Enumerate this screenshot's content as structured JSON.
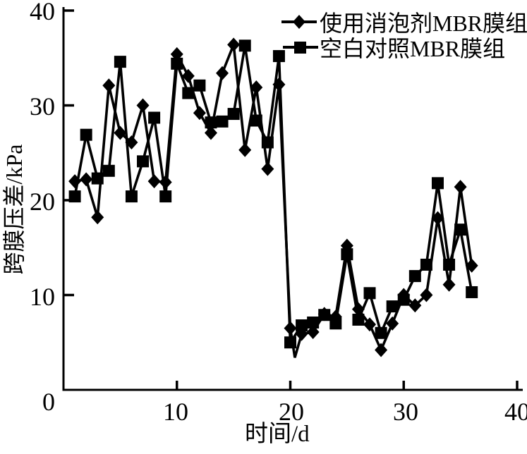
{
  "chart_data": {
    "type": "line",
    "title": "",
    "xlabel": "时间/d",
    "ylabel": "跨膜压差/kPa",
    "xlim": [
      0,
      40
    ],
    "ylim": [
      0,
      40
    ],
    "xticks": [
      0,
      10,
      20,
      30,
      40
    ],
    "yticks": [
      0,
      10,
      20,
      30,
      40
    ],
    "grid": false,
    "legend_position": "top-right",
    "line_color": "#000000",
    "background": "#ffffff",
    "series": [
      {
        "name": "使用消泡剂MBR膜组",
        "marker": "diamond",
        "x": [
          1,
          2,
          3,
          4,
          5,
          6,
          7,
          8,
          9,
          10,
          11,
          12,
          13,
          14,
          15,
          16,
          17,
          18,
          19,
          20,
          20.4,
          21,
          22,
          23,
          24,
          25,
          26,
          27,
          28,
          29,
          30,
          31,
          32,
          33,
          34,
          35,
          36
        ],
        "y": [
          22.0,
          22.2,
          18.2,
          32.1,
          27.1,
          26.1,
          30.0,
          22.0,
          21.9,
          35.4,
          33.1,
          29.2,
          27.1,
          33.4,
          36.4,
          25.3,
          31.9,
          23.3,
          32.2,
          6.5,
          3.4,
          5.9,
          6.1,
          8.0,
          7.7,
          15.2,
          8.5,
          6.9,
          4.2,
          7.0,
          10.0,
          8.9,
          10.0,
          18.1,
          11.1,
          21.4,
          13.1
        ],
        "marker_skip_x": [
          20.4
        ]
      },
      {
        "name": "空白对照MBR膜组",
        "marker": "square",
        "x": [
          1,
          2,
          3,
          4,
          5,
          6,
          7,
          8,
          9,
          10,
          11,
          12,
          13,
          14,
          15,
          16,
          17,
          18,
          19,
          20,
          21,
          22,
          23,
          24,
          25,
          26,
          27,
          28,
          29,
          30,
          31,
          32,
          33,
          34,
          35,
          36
        ],
        "y": [
          20.4,
          26.9,
          22.3,
          23.1,
          34.6,
          20.4,
          24.1,
          28.7,
          20.4,
          34.4,
          31.3,
          32.1,
          28.2,
          28.3,
          29.1,
          36.3,
          28.4,
          26.1,
          35.2,
          5.0,
          6.8,
          7.1,
          7.9,
          7.0,
          14.3,
          7.4,
          10.2,
          6.0,
          8.8,
          9.5,
          12.0,
          13.2,
          21.8,
          13.2,
          16.9,
          10.3
        ],
        "marker_skip_x": []
      }
    ]
  }
}
